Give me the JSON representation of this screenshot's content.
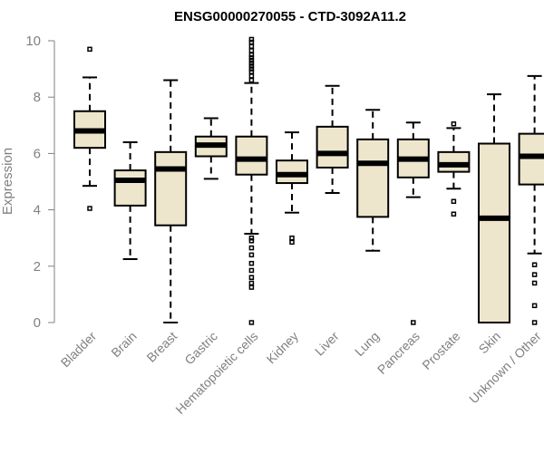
{
  "chart_data": {
    "type": "boxplot",
    "title": "ENSG00000270055 - CTD-3092A11.2",
    "xlabel": "",
    "ylabel": "Expression",
    "ylim": [
      0,
      10
    ],
    "yticks": [
      0,
      2,
      4,
      6,
      8,
      10
    ],
    "box_fill": "#ede6cc",
    "categories": [
      "Bladder",
      "Brain",
      "Breast",
      "Gastric",
      "Hematopoietic cells",
      "Kidney",
      "Liver",
      "Lung",
      "Pancreas",
      "Prostate",
      "Skin",
      "Unknown / Other"
    ],
    "boxes": [
      {
        "min": 4.85,
        "q1": 6.2,
        "median": 6.8,
        "q3": 7.5,
        "max": 8.7,
        "outliers": [
          4.05,
          9.7
        ]
      },
      {
        "min": 2.25,
        "q1": 4.15,
        "median": 5.05,
        "q3": 5.4,
        "max": 6.4,
        "outliers": []
      },
      {
        "min": 0.0,
        "q1": 3.45,
        "median": 5.45,
        "q3": 6.05,
        "max": 8.6,
        "outliers": []
      },
      {
        "min": 5.1,
        "q1": 5.9,
        "median": 6.3,
        "q3": 6.6,
        "max": 7.25,
        "outliers": []
      },
      {
        "min": 3.15,
        "q1": 5.25,
        "median": 5.8,
        "q3": 6.6,
        "max": 8.5,
        "outliers": [
          0.0,
          1.25,
          1.4,
          1.6,
          1.85,
          2.1,
          2.4,
          2.65,
          2.9,
          3.0,
          8.6,
          8.75,
          8.9,
          9.0,
          9.1,
          9.2,
          9.3,
          9.4,
          9.5,
          9.65,
          9.8,
          9.95,
          10.05
        ]
      },
      {
        "min": 3.9,
        "q1": 4.95,
        "median": 5.25,
        "q3": 5.75,
        "max": 6.75,
        "outliers": [
          2.85,
          3.0
        ]
      },
      {
        "min": 4.6,
        "q1": 5.5,
        "median": 6.0,
        "q3": 6.95,
        "max": 8.4,
        "outliers": []
      },
      {
        "min": 2.55,
        "q1": 3.75,
        "median": 5.65,
        "q3": 6.5,
        "max": 7.55,
        "outliers": []
      },
      {
        "min": 4.45,
        "q1": 5.15,
        "median": 5.8,
        "q3": 6.5,
        "max": 7.1,
        "outliers": [
          0.0
        ]
      },
      {
        "min": 4.75,
        "q1": 5.35,
        "median": 5.6,
        "q3": 6.05,
        "max": 6.9,
        "outliers": [
          3.85,
          4.3,
          7.05
        ]
      },
      {
        "min": 0.0,
        "q1": 0.0,
        "median": 3.7,
        "q3": 6.35,
        "max": 8.1,
        "outliers": []
      },
      {
        "min": 2.45,
        "q1": 4.9,
        "median": 5.9,
        "q3": 6.7,
        "max": 8.75,
        "outliers": [
          0.0,
          0.6,
          1.4,
          1.7,
          2.05
        ]
      }
    ]
  }
}
